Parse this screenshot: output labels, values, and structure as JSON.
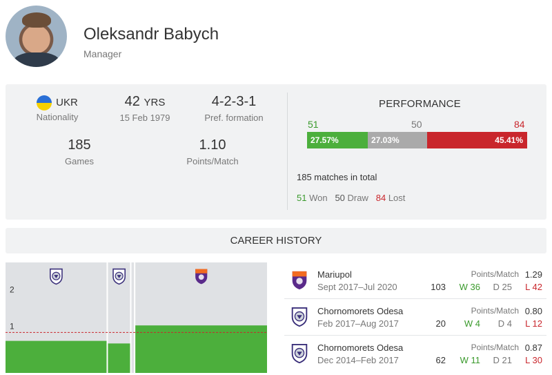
{
  "manager": {
    "name": "Oleksandr Babych",
    "role": "Manager"
  },
  "stats": {
    "nationality_code": "UKR",
    "nationality_label": "Nationality",
    "age_value": "42",
    "age_unit": "YRS",
    "birth_date": "15 Feb 1979",
    "formation": "4-2-3-1",
    "formation_label": "Pref. formation",
    "games": "185",
    "games_label": "Games",
    "points_per_match": "1.10",
    "points_per_match_label": "Points/Match"
  },
  "performance": {
    "title": "PERFORMANCE",
    "won": "51",
    "draw": "50",
    "lost": "84",
    "won_pct": "27.57%",
    "draw_pct": "27.03%",
    "lost_pct": "45.41%",
    "won_share": 0.2757,
    "draw_share": 0.2703,
    "lost_share": 0.4541,
    "total_text": "185 matches in total",
    "won_label": "Won",
    "draw_label": "Draw",
    "lost_label": "Lost"
  },
  "career_title": "CAREER HISTORY",
  "chart_data": {
    "type": "bar",
    "y_ticks": [
      "1",
      "2"
    ],
    "ylim": [
      0,
      3
    ],
    "average": 1.1,
    "segments": [
      {
        "club": "Chornomorets Odesa",
        "start": "2014-12",
        "end": "2017-02",
        "value": 0.87,
        "icon": "chornomorets-logo-icon"
      },
      {
        "club": "Chornomorets Odesa",
        "start": "2017-02",
        "end": "2017-08",
        "value": 0.8,
        "icon": "chornomorets-logo-icon"
      },
      {
        "club": "Mariupol",
        "start": "2017-09",
        "end": "2020-07",
        "value": 1.29,
        "icon": "mariupol-logo-icon"
      }
    ],
    "colors": {
      "bar": "#4caf3c",
      "background": "#dfe1e4",
      "average_line": "#c9262c"
    }
  },
  "career": [
    {
      "club": "Mariupol",
      "period": "Sept 2017–Jul 2020",
      "ppm_label": "Points/Match",
      "ppm": "1.29",
      "games": "103",
      "w": "W 36",
      "d": "D 25",
      "l": "L 42",
      "logo": "mariupol"
    },
    {
      "club": "Chornomorets Odesa",
      "period": "Feb 2017–Aug 2017",
      "ppm_label": "Points/Match",
      "ppm": "0.80",
      "games": "20",
      "w": "W 4",
      "d": "D 4",
      "l": "L 12",
      "logo": "chornomorets"
    },
    {
      "club": "Chornomorets Odesa",
      "period": "Dec 2014–Feb 2017",
      "ppm_label": "Points/Match",
      "ppm": "0.87",
      "games": "62",
      "w": "W 11",
      "d": "D 21",
      "l": "L 30",
      "logo": "chornomorets"
    }
  ]
}
